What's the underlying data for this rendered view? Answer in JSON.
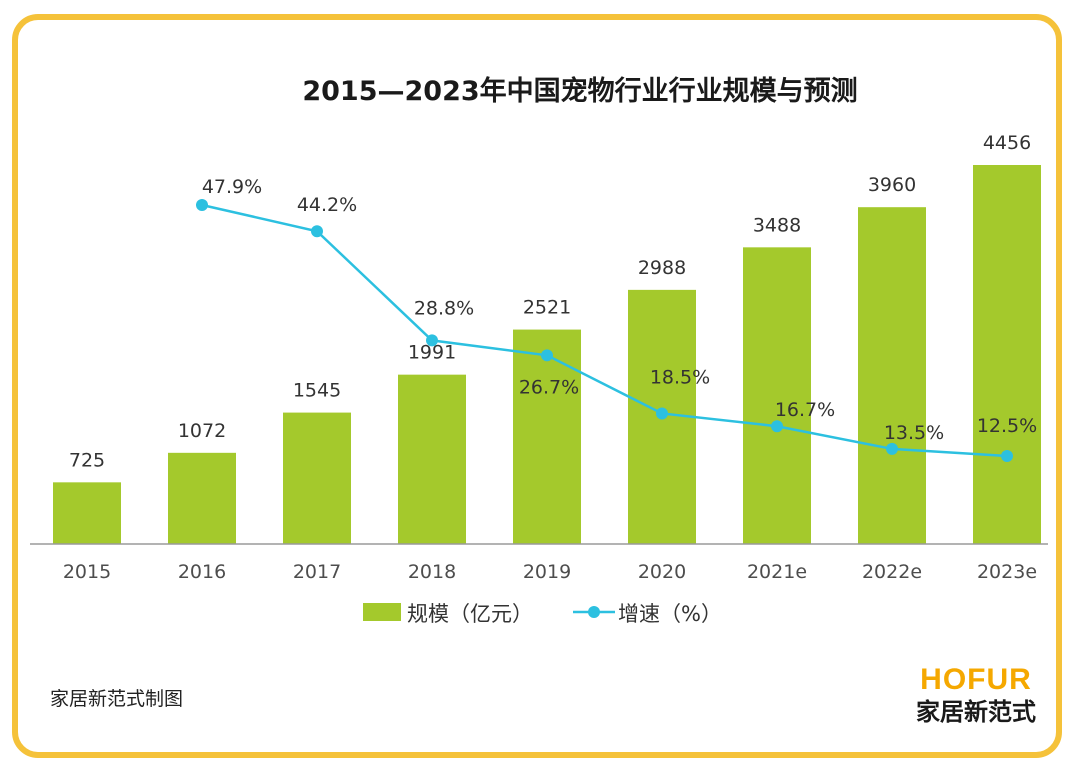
{
  "chart_data": {
    "type": "bar",
    "title": "2015—2023年中国宠物行业行业规模与预测",
    "categories": [
      "2015",
      "2016",
      "2017",
      "2018",
      "2019",
      "2020",
      "2021e",
      "2022e",
      "2023e"
    ],
    "series": [
      {
        "name": "规模（亿元）",
        "type": "bar",
        "color": "#a4c92c",
        "values": [
          725,
          1072,
          1545,
          1991,
          2521,
          2988,
          3488,
          3960,
          4456
        ],
        "labels": [
          "725",
          "1072",
          "1545",
          "1991",
          "2521",
          "2988",
          "3488",
          "3960",
          "4456"
        ]
      },
      {
        "name": "增速（%）",
        "type": "line",
        "color": "#2cc0e0",
        "values": [
          null,
          47.9,
          44.2,
          28.8,
          26.7,
          18.5,
          16.7,
          13.5,
          12.5
        ],
        "labels": [
          "",
          "47.9%",
          "44.2%",
          "28.8%",
          "26.7%",
          "18.5%",
          "16.7%",
          "13.5%",
          "12.5%"
        ]
      }
    ],
    "grid": false,
    "legend_position": "bottom"
  },
  "footer": {
    "source": "家居新范式制图",
    "brand_en": "HOFUR",
    "brand_cn": "家居新范式"
  }
}
